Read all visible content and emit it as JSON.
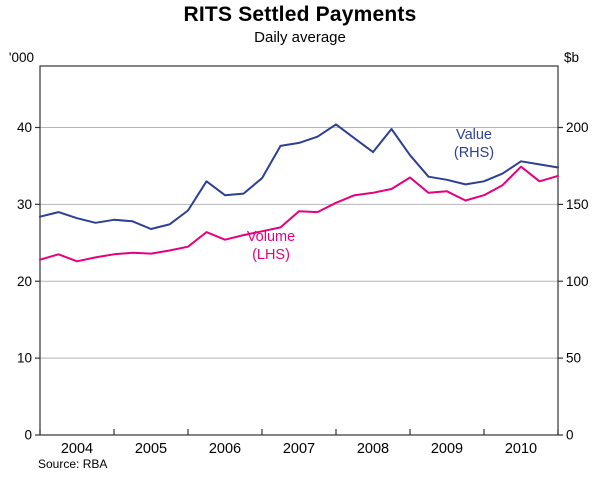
{
  "title": "RITS Settled Payments",
  "subtitle": "Daily average",
  "source": "Source: RBA",
  "axes": {
    "left_unit": "'000",
    "right_unit": "$b"
  },
  "annotations": {
    "value_line1": "Value",
    "value_line2": "(RHS)",
    "volume_line1": "Volume",
    "volume_line2": "(LHS)"
  },
  "colors": {
    "value": "#2e3f94",
    "volume": "#e5007e",
    "grid": "#b5b5b5",
    "frame": "#333333"
  },
  "chart_data": {
    "type": "line",
    "title": "RITS Settled Payments",
    "subtitle": "Daily average",
    "source": "Source: RBA",
    "x_start": 2003.5,
    "x_step": 0.25,
    "xlim": [
      2003.5,
      2010.5
    ],
    "x_ticks": [
      2003.5,
      2004.5,
      2005.5,
      2006.5,
      2007.5,
      2008.5,
      2009.5,
      2010.5
    ],
    "x_label_positions": [
      2004,
      2005,
      2006,
      2007,
      2008,
      2009,
      2010
    ],
    "x_labels": [
      "2004",
      "2005",
      "2006",
      "2007",
      "2008",
      "2009",
      "2010"
    ],
    "ylim_left": [
      0,
      48
    ],
    "left_ticks": [
      0,
      10,
      20,
      30,
      40
    ],
    "left_unit": "'000",
    "ylim_right": [
      0,
      240
    ],
    "right_ticks": [
      0,
      50,
      100,
      150,
      200
    ],
    "right_unit": "$b",
    "grid": "horizontal",
    "legend": "inline-annotations",
    "series": [
      {
        "name": "Volume (LHS)",
        "axis": "left",
        "color": "#e5007e",
        "values": [
          22.8,
          23.5,
          22.6,
          23.1,
          23.5,
          23.7,
          23.6,
          24.0,
          24.5,
          26.4,
          25.4,
          26.0,
          26.5,
          27.0,
          29.1,
          29.0,
          30.2,
          31.2,
          31.5,
          32.0,
          33.5,
          31.5,
          31.7,
          30.5,
          31.2,
          32.5,
          34.9,
          33.0,
          33.7
        ]
      },
      {
        "name": "Value (RHS)",
        "axis": "right",
        "color": "#2e3f94",
        "values": [
          142,
          145,
          141,
          138,
          140,
          139,
          134,
          137,
          146,
          165,
          156,
          157,
          167,
          188,
          190,
          194,
          202,
          193,
          184,
          199,
          182,
          168,
          166,
          163,
          165,
          170,
          178,
          176,
          174
        ]
      }
    ]
  }
}
